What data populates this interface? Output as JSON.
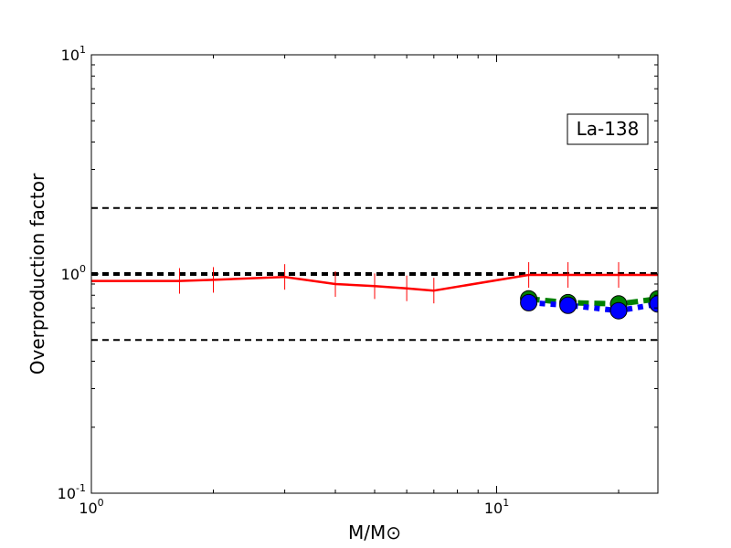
{
  "chart_data": {
    "type": "line",
    "annotation": "La-138",
    "xlabel": "M/M⊙",
    "ylabel": "Overproduction factor",
    "xscale": "log",
    "yscale": "log",
    "xlim": [
      1,
      25
    ],
    "ylim": [
      0.1,
      10
    ],
    "x_ticks": [
      {
        "value": 1,
        "base": "10",
        "exp": "0"
      },
      {
        "value": 10,
        "base": "10",
        "exp": "1"
      }
    ],
    "y_ticks": [
      {
        "value": 0.1,
        "base": "10",
        "exp": "-1"
      },
      {
        "value": 1,
        "base": "10",
        "exp": "0"
      },
      {
        "value": 10,
        "base": "10",
        "exp": "1"
      }
    ],
    "reference_lines": [
      {
        "y": 2.0,
        "style": "dashed",
        "color": "#000000",
        "weight": "normal"
      },
      {
        "y": 1.0,
        "style": "dashed",
        "color": "#000000",
        "weight": "bold"
      },
      {
        "y": 0.5,
        "style": "dashed",
        "color": "#000000",
        "weight": "normal"
      }
    ],
    "series": [
      {
        "color": "#ff0000",
        "style": "solid",
        "marker": "vline",
        "x": [
          1,
          1.65,
          2,
          3,
          4,
          5,
          6,
          7,
          12,
          15,
          20,
          25
        ],
        "y": [
          0.93,
          0.93,
          0.94,
          0.97,
          0.9,
          0.88,
          0.86,
          0.84,
          0.99,
          0.99,
          0.99,
          0.99
        ]
      },
      {
        "color": "#008000",
        "style": "dashed",
        "marker": "circle",
        "x": [
          12,
          15,
          20,
          25
        ],
        "y": [
          0.77,
          0.74,
          0.73,
          0.77
        ]
      },
      {
        "color": "#0000ff",
        "style": "dotted",
        "marker": "circle",
        "x": [
          12,
          15,
          20,
          25
        ],
        "y": [
          0.74,
          0.72,
          0.68,
          0.73
        ]
      }
    ],
    "grid": false,
    "legend": "none"
  }
}
